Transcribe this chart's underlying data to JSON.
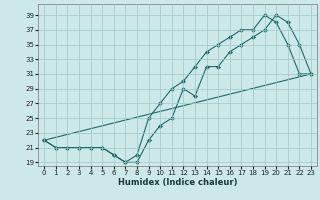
{
  "xlabel": "Humidex (Indice chaleur)",
  "xlim": [
    -0.5,
    23.5
  ],
  "ylim": [
    18.5,
    40.5
  ],
  "xticks": [
    0,
    1,
    2,
    3,
    4,
    5,
    6,
    7,
    8,
    9,
    10,
    11,
    12,
    13,
    14,
    15,
    16,
    17,
    18,
    19,
    20,
    21,
    22,
    23
  ],
  "yticks": [
    19,
    21,
    23,
    25,
    27,
    29,
    31,
    33,
    35,
    37,
    39
  ],
  "bg_color": "#cde8e8",
  "grid_color": "#a0c8c8",
  "line_color": "#1a6b6b",
  "line1_x": [
    0,
    1,
    2,
    3,
    4,
    5,
    6,
    7,
    8,
    9,
    10,
    11,
    12,
    13,
    14,
    15,
    16,
    17,
    18,
    19,
    20,
    21,
    22,
    23
  ],
  "line1_y": [
    22,
    21,
    21,
    21,
    21,
    21,
    20,
    19,
    19,
    22,
    24,
    25,
    29,
    28,
    32,
    32,
    34,
    35,
    36,
    37,
    39,
    38,
    35,
    31
  ],
  "line2_x": [
    0,
    1,
    2,
    3,
    4,
    5,
    6,
    7,
    8,
    9,
    10,
    11,
    12,
    13,
    14,
    15,
    16,
    17,
    18,
    19,
    20,
    21,
    22,
    23
  ],
  "line2_y": [
    22,
    21,
    21,
    21,
    21,
    21,
    20,
    19,
    20,
    25,
    27,
    29,
    30,
    32,
    34,
    35,
    36,
    37,
    37,
    39,
    38,
    35,
    31,
    31
  ],
  "line3_x": [
    0,
    23
  ],
  "line3_y": [
    22,
    31
  ]
}
